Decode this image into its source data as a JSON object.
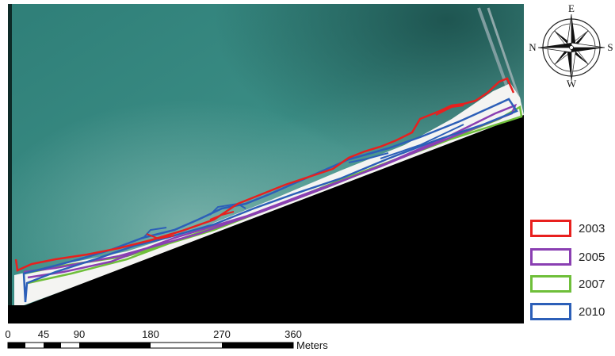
{
  "compass": {
    "north_label": "N",
    "east_label": "E",
    "south_label": "S",
    "west_label": "W"
  },
  "legend": [
    {
      "year": "2003",
      "color": "#e8201e"
    },
    {
      "year": "2005",
      "color": "#8a3fb2"
    },
    {
      "year": "2007",
      "color": "#6fbf3a"
    },
    {
      "year": "2010",
      "color": "#2c5fb8"
    }
  ],
  "scale_bar": {
    "ticks": [
      "0",
      "45",
      "90",
      "180",
      "270",
      "360"
    ],
    "unit": "Meters"
  },
  "colors": {
    "sea_dark": "#1d5a55",
    "sea_mid": "#3a8a80",
    "sea_light": "#6aa9a0",
    "beach": "#f4f4f2",
    "land": "#000000"
  }
}
